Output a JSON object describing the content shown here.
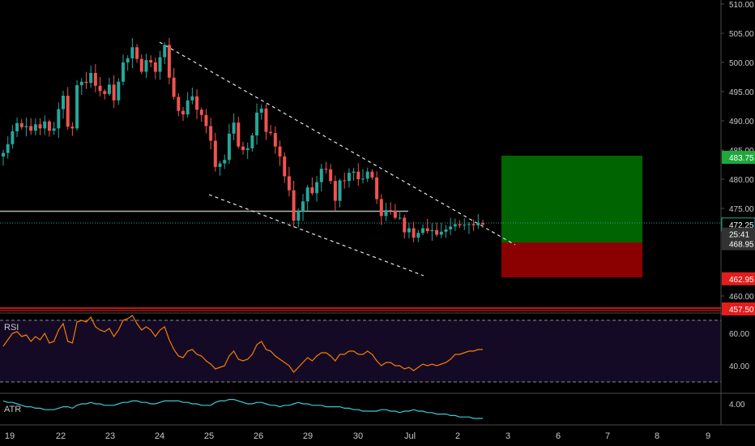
{
  "colors": {
    "background": "#000000",
    "axis_line": "#4a4a4a",
    "axis_text": "#c8c8c8",
    "up_candle": "#26a69a",
    "down_candle": "#ef5350",
    "channel_line": "#e6e6e6",
    "horizontal_level": "#b4b4b4",
    "last_price_line": "#26a69a",
    "target_zone": "#006400",
    "stop_zone": "#8b0000",
    "red_level": "#ff2020",
    "rsi_line": "#f57c00",
    "rsi_panel": "#150a26",
    "atr_line": "#3dc9d6",
    "target_tag": "#1ea83c",
    "stop_tag": "#e11d1d",
    "neutral_tag": "#333333"
  },
  "price_axis": {
    "ticks": [
      "510.00",
      "505.00",
      "500.00",
      "495.00",
      "490.00",
      "485.00",
      "480.00",
      "475.00",
      "460.00"
    ],
    "tags": [
      {
        "name": "target-price-tag",
        "text": "483.75",
        "value": 483.75,
        "style": "target"
      },
      {
        "name": "last-price-tag",
        "text": "472.25",
        "value": 472.25,
        "style": "last"
      },
      {
        "name": "countdown-tag",
        "text": "25:41",
        "value": 470.6,
        "style": "neutral"
      },
      {
        "name": "entry-price-tag",
        "text": "468.95",
        "value": 468.95,
        "style": "neutral"
      },
      {
        "name": "stop-price-tag",
        "text": "462.95",
        "value": 462.95,
        "style": "stop"
      },
      {
        "name": "red-level-tag",
        "text": "457.50",
        "value": 457.5,
        "style": "stop"
      }
    ]
  },
  "rsi": {
    "label": "RSI",
    "ticks": [
      "60.00",
      "40.00"
    ]
  },
  "atr": {
    "label": "ATR",
    "ticks": [
      "4.00"
    ]
  },
  "time_axis": {
    "labels": [
      "19",
      "22",
      "23",
      "24",
      "25",
      "26",
      "29",
      "30",
      "Jul",
      "2",
      "3",
      "6",
      "7",
      "8",
      "9"
    ]
  },
  "chart_data": {
    "type": "candlestick",
    "symbol_timeframe": "",
    "ylim": [
      457,
      510.5
    ],
    "levels": {
      "horizontal_support": 473.7,
      "last_price": 472.25,
      "entry": 468.95,
      "target": 483.75,
      "stop": 462.95,
      "red_level": 457.5
    },
    "series": [
      {
        "name": "price",
        "close": [
          484.5,
          486.0,
          488.2,
          489.6,
          488.9,
          489.1,
          488.3,
          489.4,
          488.7,
          489.9,
          488.3,
          488.7,
          492.0,
          494.3,
          489.0,
          488.7,
          496.1,
          496.7,
          496.5,
          498.2,
          496.0,
          495.1,
          494.6,
          496.2,
          493.5,
          496.7,
          500.0,
          500.7,
          502.6,
          500.6,
          498.4,
          500.4,
          500.0,
          498.4,
          500.9,
          503.0,
          497.4,
          494.1,
          491.7,
          491.1,
          493.5,
          494.2,
          491.9,
          491.0,
          489.1,
          486.6,
          482.1,
          482.7,
          483.3,
          487.8,
          489.7,
          485.6,
          485.0,
          485.3,
          487.5,
          491.4,
          492.1,
          488.1,
          487.9,
          485.6,
          483.9,
          480.5,
          478.1,
          472.9,
          474.5,
          476.2,
          478.6,
          477.6,
          479.5,
          481.8,
          481.7,
          479.7,
          476.3,
          479.8,
          479.7,
          481.1,
          481.3,
          480.0,
          480.1,
          481.3,
          480.3,
          476.6,
          473.7,
          474.7,
          474.6,
          473.4,
          473.4,
          470.9,
          471.6,
          470.0,
          470.8,
          471.6,
          471.1,
          471.3,
          470.5,
          471.0,
          471.4,
          471.9,
          472.3,
          472.1,
          472.2,
          472.3,
          472.1,
          472.5,
          472.25
        ]
      },
      {
        "name": "RSI",
        "values": [
          52,
          56,
          60,
          61,
          58,
          59,
          55,
          58,
          56,
          60,
          54,
          55,
          62,
          66,
          55,
          54,
          67,
          68,
          67,
          70,
          64,
          62,
          61,
          63,
          58,
          62,
          68,
          69,
          71,
          66,
          62,
          64,
          62,
          58,
          62,
          64,
          56,
          50,
          46,
          45,
          49,
          50,
          47,
          46,
          43,
          41,
          38,
          39,
          40,
          46,
          49,
          44,
          43,
          44,
          47,
          53,
          55,
          50,
          49,
          46,
          44,
          42,
          40,
          36,
          39,
          42,
          45,
          43,
          46,
          48,
          48,
          46,
          43,
          47,
          47,
          49,
          49,
          47,
          47,
          49,
          47,
          43,
          40,
          42,
          42,
          40,
          40,
          38,
          39,
          37,
          39,
          41,
          40,
          41,
          40,
          41,
          42,
          44,
          47,
          47,
          48,
          49,
          49,
          50,
          50
        ]
      },
      {
        "name": "ATR",
        "values": [
          4.2,
          4.1,
          4.1,
          4.0,
          3.9,
          3.8,
          3.8,
          3.7,
          3.7,
          3.6,
          3.6,
          3.6,
          3.7,
          3.8,
          3.8,
          3.7,
          3.9,
          4.0,
          4.0,
          4.1,
          4.0,
          4.0,
          3.9,
          3.9,
          3.9,
          4.0,
          4.1,
          4.1,
          4.2,
          4.2,
          4.1,
          4.1,
          4.0,
          4.0,
          4.1,
          4.2,
          4.2,
          4.2,
          4.2,
          4.1,
          4.1,
          4.0,
          4.0,
          3.9,
          3.9,
          3.9,
          4.1,
          4.2,
          4.2,
          4.3,
          4.3,
          4.2,
          4.1,
          4.0,
          4.0,
          4.1,
          4.1,
          4.0,
          3.9,
          3.9,
          3.8,
          3.9,
          3.9,
          4.0,
          4.1,
          4.0,
          4.0,
          3.9,
          3.9,
          3.9,
          3.8,
          3.8,
          3.8,
          3.8,
          3.7,
          3.7,
          3.6,
          3.6,
          3.5,
          3.5,
          3.5,
          3.5,
          3.6,
          3.6,
          3.5,
          3.5,
          3.4,
          3.5,
          3.5,
          3.6,
          3.5,
          3.5,
          3.4,
          3.4,
          3.3,
          3.3,
          3.3,
          3.2,
          3.2,
          3.1,
          3.1,
          3.1,
          3.0,
          3.0,
          3.0
        ]
      }
    ]
  }
}
